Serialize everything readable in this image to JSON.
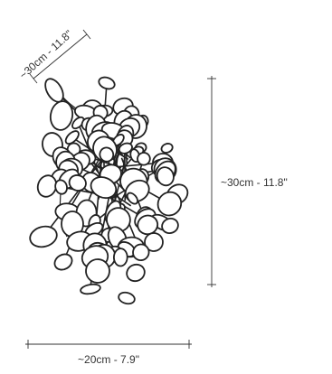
{
  "dimensions": {
    "depth": {
      "label": "~30cm - 11.8\""
    },
    "height": {
      "label": "~30cm - 11.8\""
    },
    "width": {
      "label": "~20cm - 7.9\""
    }
  },
  "colors": {
    "line": "#333333",
    "disc_fill": "#ffffff",
    "disc_stroke": "#222222"
  }
}
